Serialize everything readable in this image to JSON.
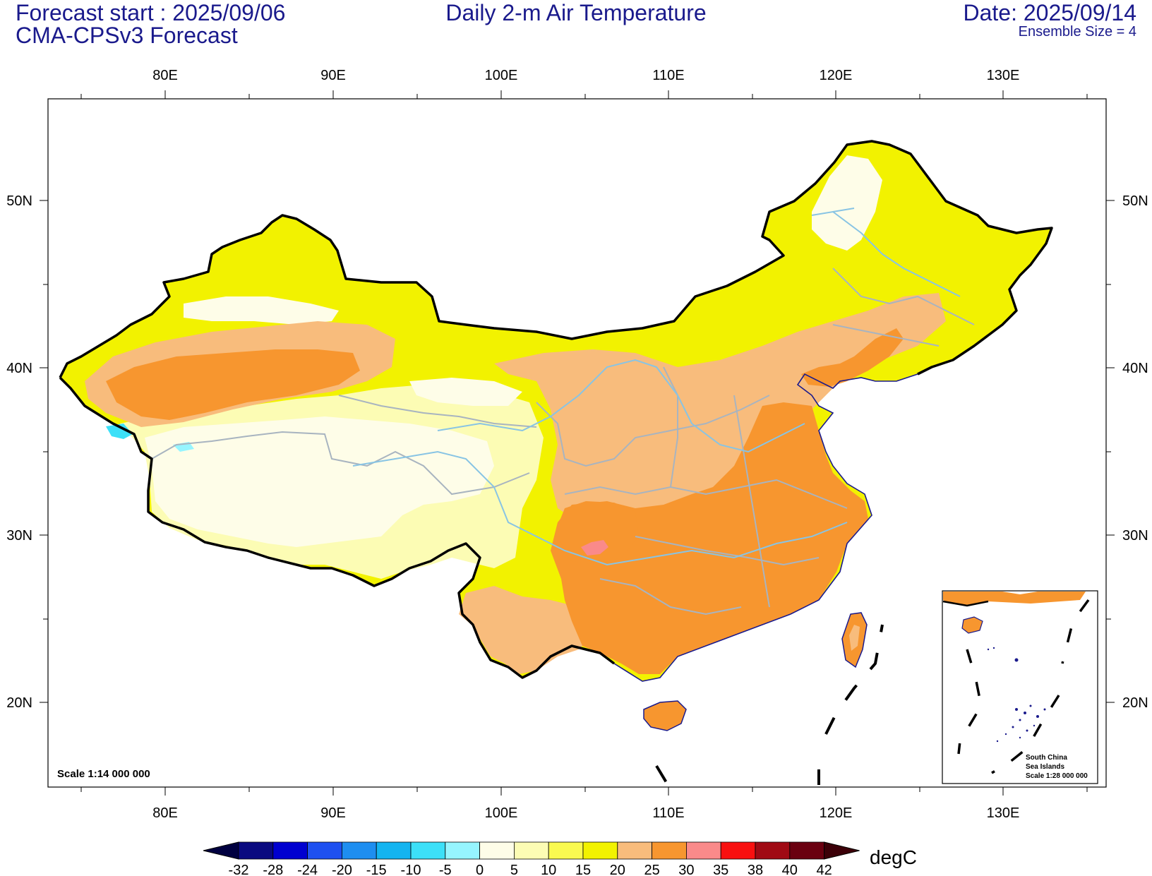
{
  "header": {
    "forecast_start": "Forecast start : 2025/09/06",
    "model": "CMA-CPSv3 Forecast",
    "title": "Daily 2-m Air Temperature",
    "date": "Date: 2025/09/14",
    "ensemble": "Ensemble Size = 4"
  },
  "map": {
    "lon_labels": [
      "80E",
      "90E",
      "100E",
      "110E",
      "120E",
      "130E"
    ],
    "lat_labels": [
      "50N",
      "40N",
      "30N",
      "20N"
    ],
    "scale": "Scale 1:14 000 000",
    "inset": {
      "line1": "South China",
      "line2": "Sea Islands",
      "line3": "Scale 1:28 000 000"
    }
  },
  "colorbar": {
    "unit": "degC",
    "labels": [
      "-32",
      "-28",
      "-24",
      "-20",
      "-15",
      "-10",
      "-5",
      "0",
      "5",
      "10",
      "15",
      "20",
      "25",
      "30",
      "35",
      "38",
      "40",
      "42"
    ],
    "colors": [
      "#0a0a80",
      "#0000d0",
      "#1e50f0",
      "#1e8ef0",
      "#14b4f0",
      "#3ce0f8",
      "#96f5ff",
      "#fefde8",
      "#fcfcb4",
      "#fafa50",
      "#f2f200",
      "#f8bc7c",
      "#f7962f",
      "#fa8a8a",
      "#f81010",
      "#a00a14",
      "#6a0010"
    ],
    "low_color": "#000040",
    "high_color": "#3c0008"
  }
}
